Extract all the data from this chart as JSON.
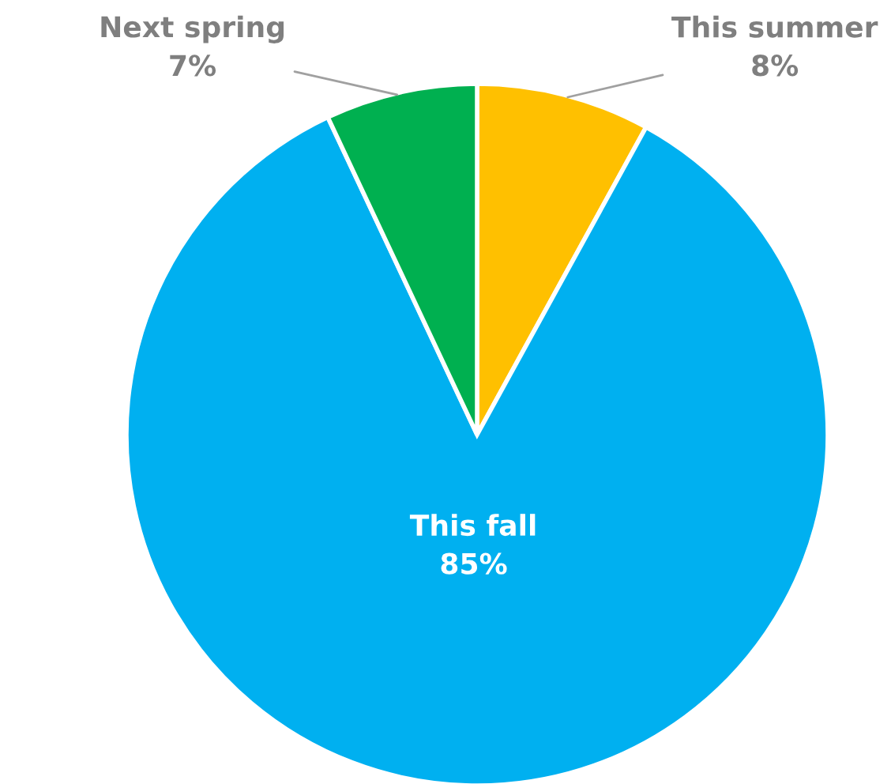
{
  "chart_data": {
    "type": "pie",
    "categories": [
      "This summer",
      "This fall",
      "Next spring"
    ],
    "values": [
      8,
      85,
      7
    ],
    "value_labels": [
      "8%",
      "85%",
      "7%"
    ],
    "colors": [
      "#ffc000",
      "#00b0f0",
      "#00b050"
    ]
  }
}
